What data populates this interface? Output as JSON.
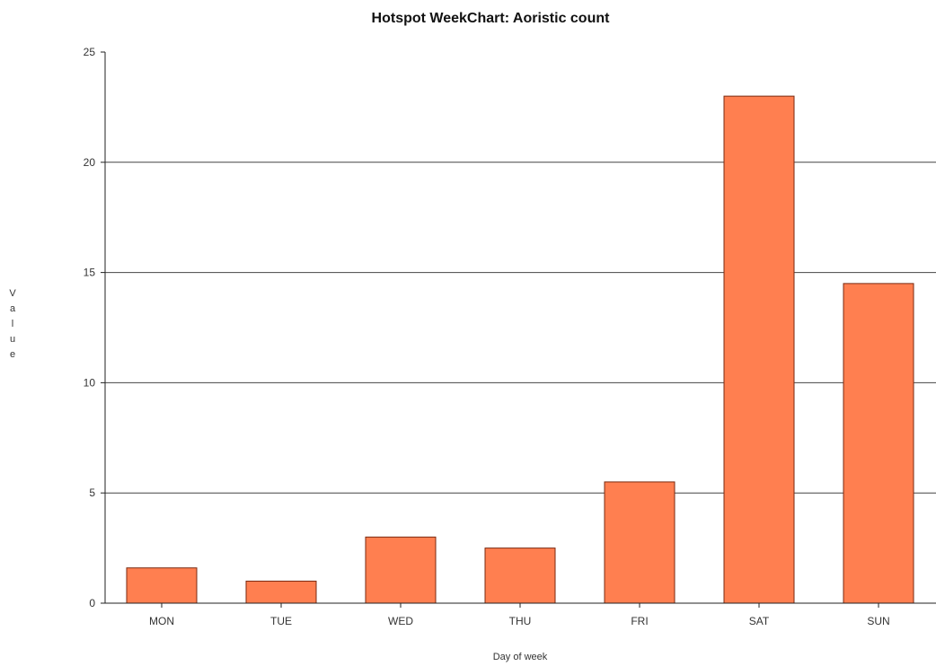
{
  "chart_data": {
    "type": "bar",
    "title": "Hotspot WeekChart: Aoristic count",
    "xlabel": "Day of week",
    "ylabel": "Value",
    "categories": [
      "MON",
      "TUE",
      "WED",
      "THU",
      "FRI",
      "SAT",
      "SUN"
    ],
    "values": [
      1.6,
      1.0,
      3.0,
      2.5,
      5.5,
      23.0,
      14.5
    ],
    "ylim": [
      0,
      25
    ],
    "yticks": [
      0,
      5,
      10,
      15,
      20,
      25
    ],
    "grid": true,
    "legend": "none",
    "colors": {
      "bar_fill": "#ff7f50",
      "bar_stroke": "#7a2a10",
      "grid": "#444444"
    }
  }
}
